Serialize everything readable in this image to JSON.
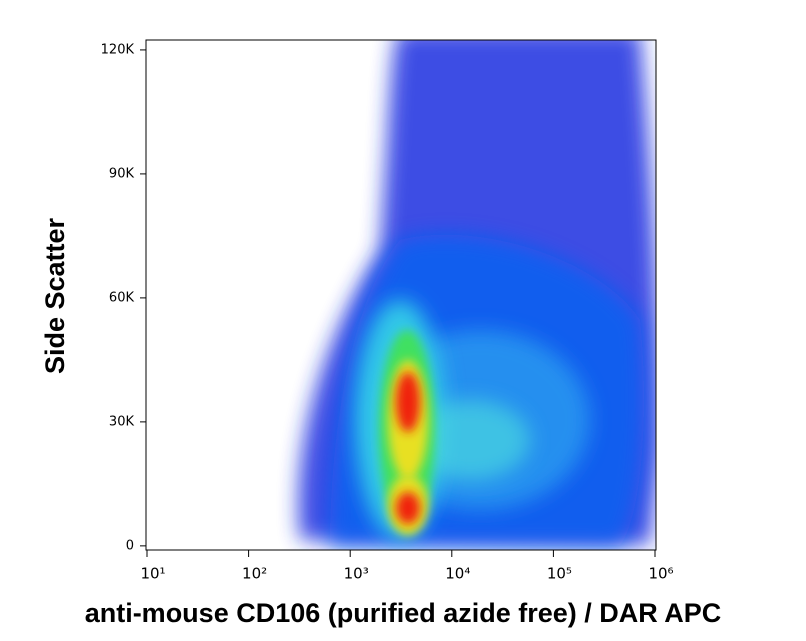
{
  "chart_data": {
    "type": "density",
    "x_label": "anti-mouse CD106 (purified azide free) / DAR APC",
    "y_label": "Side Scatter",
    "xscale": "log",
    "xlim": [
      10,
      1000000
    ],
    "xticks": [
      {
        "value": 10,
        "label": "10¹"
      },
      {
        "value": 100,
        "label": "10²"
      },
      {
        "value": 1000,
        "label": "10³"
      },
      {
        "value": 10000,
        "label": "10⁴"
      },
      {
        "value": 100000,
        "label": "10⁵"
      },
      {
        "value": 1000000,
        "label": "10⁶"
      }
    ],
    "ylim": [
      -1000,
      122400
    ],
    "yticks": [
      0,
      {
        "value": 30000,
        "label": "30K"
      },
      {
        "value": 60000,
        "label": "60K"
      },
      {
        "value": 90000,
        "label": "90K"
      },
      {
        "value": 120000,
        "label": "120K"
      }
    ]
  }
}
